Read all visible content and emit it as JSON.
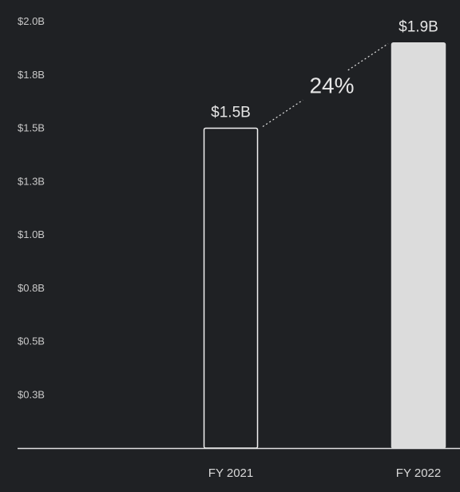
{
  "chart_data": {
    "type": "bar",
    "categories": [
      "FY 2021",
      "FY 2022"
    ],
    "values": [
      1.5,
      1.9
    ],
    "data_labels": [
      "$1.5B",
      "$1.9B"
    ],
    "yticks": [
      {
        "value": 2.0,
        "label": "$2.0B"
      },
      {
        "value": 1.75,
        "label": "$1.8B"
      },
      {
        "value": 1.5,
        "label": "$1.5B"
      },
      {
        "value": 1.25,
        "label": "$1.3B"
      },
      {
        "value": 1.0,
        "label": "$1.0B"
      },
      {
        "value": 0.75,
        "label": "$0.8B"
      },
      {
        "value": 0.5,
        "label": "$0.5B"
      },
      {
        "value": 0.25,
        "label": "$0.3B"
      }
    ],
    "ylim": [
      0,
      2.0
    ],
    "grid": false,
    "annotation": "24%",
    "colors": {
      "background": "#1f2124",
      "bar_outline": "#f2f2f2",
      "bar_fill_highlight": "#dcdcdc",
      "axis": "#e0e0e0",
      "text": "#d9d9d9"
    }
  }
}
